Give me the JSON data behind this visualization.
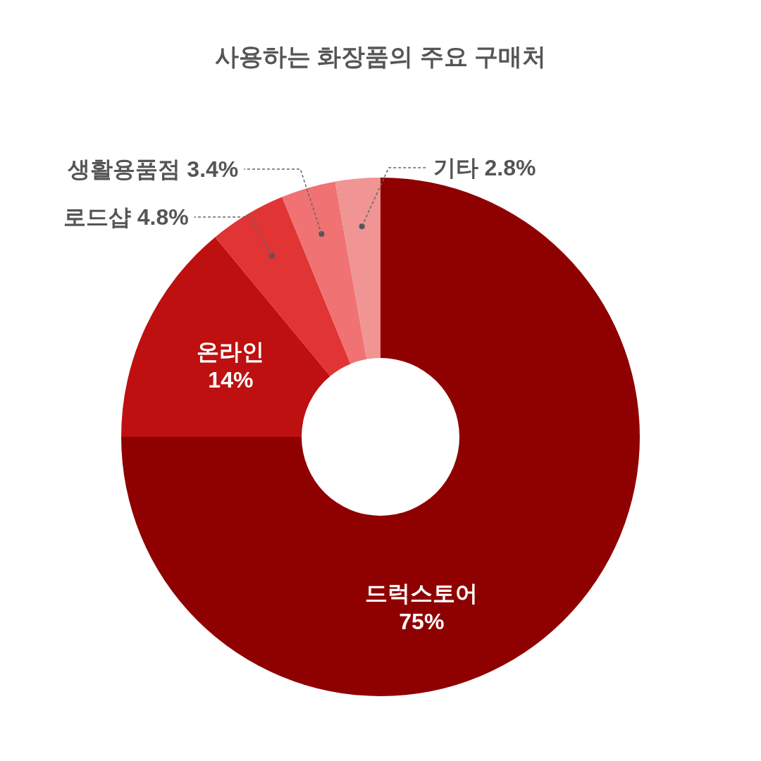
{
  "chart_data": {
    "type": "donut",
    "title": "사용하는 화장품의 주요 구매처",
    "categories": [
      "드럭스토어",
      "온라인",
      "로드샵",
      "생활용품점",
      "기타"
    ],
    "values": [
      75,
      14,
      4.8,
      3.4,
      2.8
    ],
    "value_labels": [
      "75%",
      "14%",
      "4.8%",
      "3.4%",
      "2.8%"
    ],
    "colors": [
      "#8f0000",
      "#be1010",
      "#e13434",
      "#f07272",
      "#f09494"
    ]
  }
}
